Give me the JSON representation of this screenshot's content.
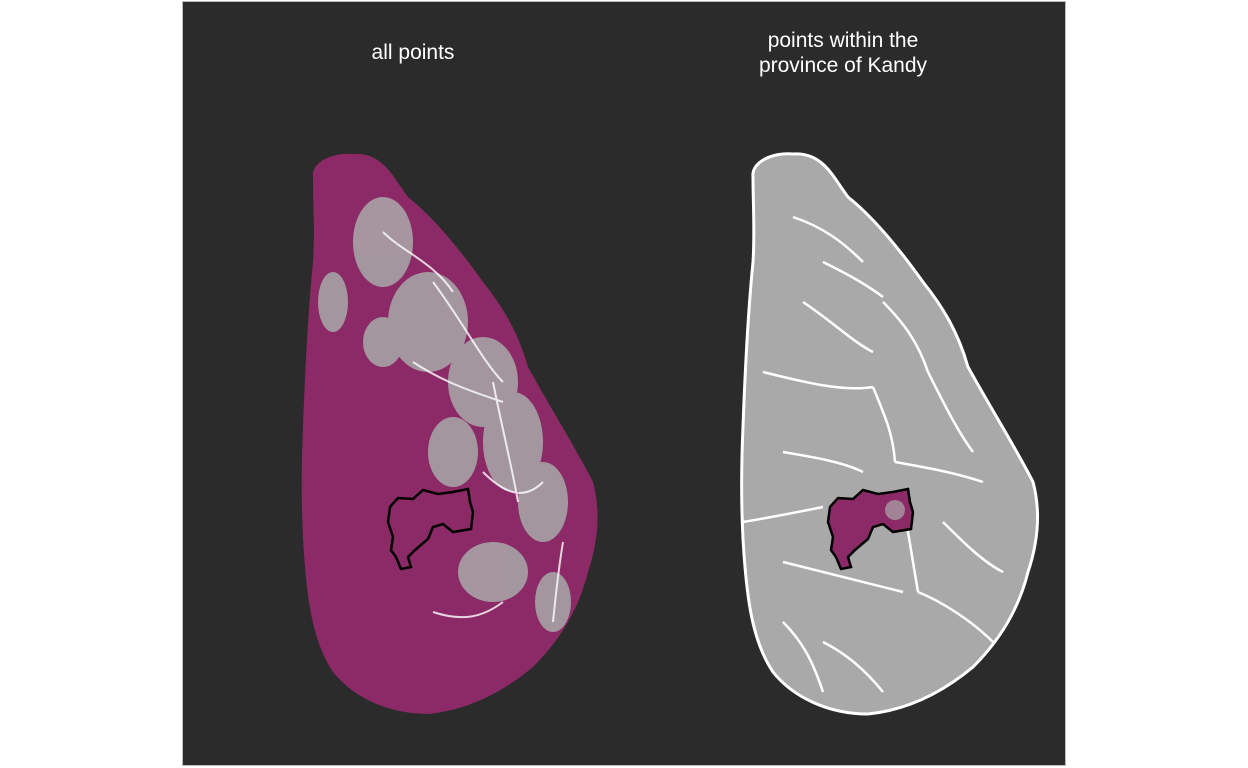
{
  "panels": [
    {
      "title": "all points"
    },
    {
      "title": "points within the\nprovince of Kandy"
    }
  ],
  "colors": {
    "panel_background": "#2b2b2b",
    "points": "#8b2a66",
    "land": "#a9a9a9",
    "boundaries": "#ffffff",
    "highlight_outline": "#000000"
  },
  "highlighted_region": "Kandy"
}
